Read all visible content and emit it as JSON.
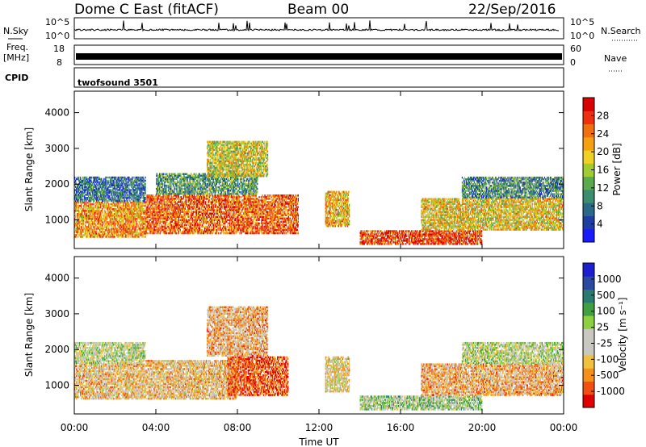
{
  "header": {
    "station": "Dome C East (fitACF)",
    "beam": "Beam 00",
    "date": "22/Sep/2016"
  },
  "strips": {
    "nsky_label": "N.Sky",
    "nsky_ticks": [
      "10^5",
      "10^0"
    ],
    "nsearch_label": "N.Search",
    "nsearch_ticks": [
      "10^5",
      "10^0"
    ],
    "freq_label_1": "Freq.",
    "freq_label_2": "[MHz]",
    "freq_ticks": [
      "18",
      "8"
    ],
    "nave_label": "Nave",
    "nave_ticks": [
      "60",
      "0"
    ],
    "cpid_label": "CPID",
    "cpid_value": "twofsound 3501"
  },
  "colors": {
    "power_scale": [
      "#1a1aff",
      "#1f3fa0",
      "#2a6a88",
      "#3c8c6e",
      "#5aaa50",
      "#9fcc30",
      "#f0d020",
      "#f5a010",
      "#f07010",
      "#ee3010",
      "#d80000"
    ],
    "velocity_scale": [
      "#e00000",
      "#f05010",
      "#f5901a",
      "#f0c040",
      "#c8c8c0",
      "#c8c8c0",
      "#8fd040",
      "#40a040",
      "#2a7a70",
      "#2a4aa0",
      "#1a20d0"
    ]
  },
  "chart_data": [
    {
      "type": "heatmap",
      "panel": "power",
      "ylabel": "Slant Range [km]",
      "yticks": [
        "1000",
        "2000",
        "3000",
        "4000"
      ],
      "ylim": [
        200,
        4600
      ],
      "colorbar_label": "Power [dB]",
      "colorbar_ticks": [
        "4",
        "8",
        "12",
        "16",
        "20",
        "24",
        "28"
      ],
      "scatter_regions": [
        {
          "t0": 0.0,
          "t1": 3.5,
          "r0": 500,
          "r1": 1500,
          "level": 0.7
        },
        {
          "t0": 0.0,
          "t1": 3.5,
          "r0": 1500,
          "r1": 2200,
          "level": 0.25
        },
        {
          "t0": 3.5,
          "t1": 11.0,
          "r0": 600,
          "r1": 1700,
          "level": 0.8
        },
        {
          "t0": 4.0,
          "t1": 9.0,
          "r0": 1700,
          "r1": 2300,
          "level": 0.35
        },
        {
          "t0": 6.5,
          "t1": 9.5,
          "r0": 2200,
          "r1": 3200,
          "level": 0.55
        },
        {
          "t0": 12.3,
          "t1": 13.5,
          "r0": 800,
          "r1": 1800,
          "level": 0.65
        },
        {
          "t0": 14.0,
          "t1": 20.0,
          "r0": 300,
          "r1": 700,
          "level": 0.85
        },
        {
          "t0": 17.0,
          "t1": 24.0,
          "r0": 700,
          "r1": 1600,
          "level": 0.6
        },
        {
          "t0": 19.0,
          "t1": 24.0,
          "r0": 1600,
          "r1": 2200,
          "level": 0.3
        }
      ]
    },
    {
      "type": "heatmap",
      "panel": "velocity",
      "xlabel": "Time UT",
      "ylabel": "Slant Range [km]",
      "xticks": [
        "00:00",
        "04:00",
        "08:00",
        "12:00",
        "16:00",
        "20:00",
        "00:00"
      ],
      "yticks": [
        "1000",
        "2000",
        "3000",
        "4000"
      ],
      "ylim": [
        200,
        4600
      ],
      "colorbar_label": "Velocity [m s⁻¹]",
      "colorbar_ticks": [
        "-1000",
        "-500",
        "-100",
        "-25",
        "25",
        "100",
        "500",
        "1000"
      ],
      "scatter_regions": [
        {
          "t0": 0.0,
          "t1": 3.5,
          "r0": 600,
          "r1": 1600,
          "level": 0.35
        },
        {
          "t0": 0.0,
          "t1": 3.5,
          "r0": 1600,
          "r1": 2200,
          "level": 0.5
        },
        {
          "t0": 3.5,
          "t1": 8.0,
          "r0": 600,
          "r1": 1700,
          "level": 0.35
        },
        {
          "t0": 7.5,
          "t1": 10.5,
          "r0": 700,
          "r1": 1800,
          "level": 0.15
        },
        {
          "t0": 6.5,
          "t1": 9.5,
          "r0": 1800,
          "r1": 3200,
          "level": 0.3
        },
        {
          "t0": 12.3,
          "t1": 13.5,
          "r0": 800,
          "r1": 1800,
          "level": 0.4
        },
        {
          "t0": 14.0,
          "t1": 20.0,
          "r0": 300,
          "r1": 700,
          "level": 0.55
        },
        {
          "t0": 17.0,
          "t1": 24.0,
          "r0": 700,
          "r1": 1600,
          "level": 0.3
        },
        {
          "t0": 19.0,
          "t1": 24.0,
          "r0": 1600,
          "r1": 2200,
          "level": 0.5
        }
      ]
    }
  ]
}
